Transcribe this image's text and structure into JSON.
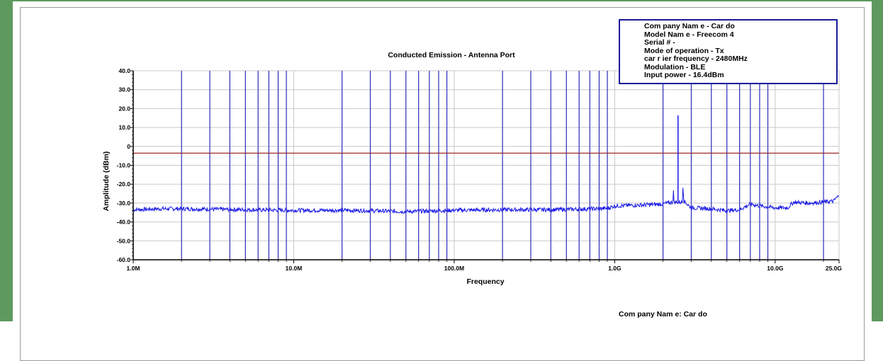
{
  "chart_data": {
    "type": "line",
    "title": "Conducted Emission - Antenna Port",
    "xlabel": "Frequency",
    "ylabel": "Amplitude (dBm)",
    "xscale": "log",
    "xlim_hz": [
      1000000,
      25000000000
    ],
    "ylim": [
      -60,
      40
    ],
    "y_ticks": [
      40,
      30,
      20,
      10,
      0,
      -10,
      -20,
      -30,
      -40,
      -50,
      -60
    ],
    "y_tick_labels": [
      "40.0",
      "30.0",
      "20.0",
      "10.0",
      "0",
      "-10.0",
      "-20.0",
      "-30.0",
      "-40.0",
      "-50.0",
      "-60.0"
    ],
    "x_tick_labels": [
      {
        "hz": 1000000,
        "label": "1.0M"
      },
      {
        "hz": 10000000,
        "label": "10.0M"
      },
      {
        "hz": 100000000,
        "label": "100.0M"
      },
      {
        "hz": 1000000000,
        "label": "1.0G"
      },
      {
        "hz": 10000000000,
        "label": "10.0G"
      },
      {
        "hz": 25000000000,
        "label": "25.0G"
      }
    ],
    "grid": true,
    "limit_line_dbm": -3.6,
    "marker_lines_hz": [
      2000000,
      3000000,
      4000000,
      5000000,
      6000000,
      7000000,
      8000000,
      9000000,
      20000000,
      30000000,
      40000000,
      50000000,
      60000000,
      70000000,
      80000000,
      90000000,
      200000000,
      300000000,
      400000000,
      500000000,
      600000000,
      700000000,
      800000000,
      900000000,
      2000000000,
      3000000000,
      4000000000,
      5000000000,
      6000000000,
      7000000000,
      8000000000,
      9000000000,
      20000000000
    ],
    "series": [
      {
        "points": [
          {
            "hz": 1000000,
            "dbm": -33.5
          },
          {
            "hz": 1500000,
            "dbm": -33.0
          },
          {
            "hz": 2000000,
            "dbm": -33.0
          },
          {
            "hz": 5000000,
            "dbm": -33.5
          },
          {
            "hz": 10000000,
            "dbm": -33.8
          },
          {
            "hz": 20000000,
            "dbm": -33.8
          },
          {
            "hz": 30000000,
            "dbm": -34.0
          },
          {
            "hz": 50000000,
            "dbm": -34.5
          },
          {
            "hz": 80000000,
            "dbm": -34.0
          },
          {
            "hz": 100000000,
            "dbm": -33.8
          },
          {
            "hz": 200000000,
            "dbm": -33.5
          },
          {
            "hz": 400000000,
            "dbm": -33.5
          },
          {
            "hz": 600000000,
            "dbm": -33.2
          },
          {
            "hz": 900000000,
            "dbm": -32.8
          },
          {
            "hz": 1000000000,
            "dbm": -31.5
          },
          {
            "hz": 1500000000,
            "dbm": -31.0
          },
          {
            "hz": 2000000000,
            "dbm": -30.5
          },
          {
            "hz": 2300000000,
            "dbm": -29.5
          },
          {
            "hz": 2480000000,
            "dbm": 16.4
          },
          {
            "hz": 2700000000,
            "dbm": -29.0
          },
          {
            "hz": 3000000000,
            "dbm": -32.5
          },
          {
            "hz": 4000000000,
            "dbm": -33.0
          },
          {
            "hz": 5000000000,
            "dbm": -34.0
          },
          {
            "hz": 6000000000,
            "dbm": -33.5
          },
          {
            "hz": 7000000000,
            "dbm": -30.5
          },
          {
            "hz": 8000000000,
            "dbm": -31.5
          },
          {
            "hz": 10000000000,
            "dbm": -32.5
          },
          {
            "hz": 12000000000,
            "dbm": -32.5
          },
          {
            "hz": 13000000000,
            "dbm": -29.5
          },
          {
            "hz": 16000000000,
            "dbm": -30.0
          },
          {
            "hz": 20000000000,
            "dbm": -29.5
          },
          {
            "hz": 23000000000,
            "dbm": -29.0
          },
          {
            "hz": 25000000000,
            "dbm": -26.0
          }
        ]
      }
    ],
    "colors": {
      "trace": "#1a1ae6",
      "markers": "#2b2bbb",
      "limit": "#9a2a2a",
      "grid": "#c8c8c8"
    }
  },
  "legend": {
    "lines": [
      "Com pany Nam e - Car do",
      "Model Nam e - Freecom 4",
      "Serial # -",
      "Mode of operation - Tx",
      "car r ier frequency - 2480MHz",
      "Modulation - BLE",
      "Input power - 16.4dBm"
    ]
  },
  "footer": {
    "company": "Com pany Nam e: Car do"
  }
}
